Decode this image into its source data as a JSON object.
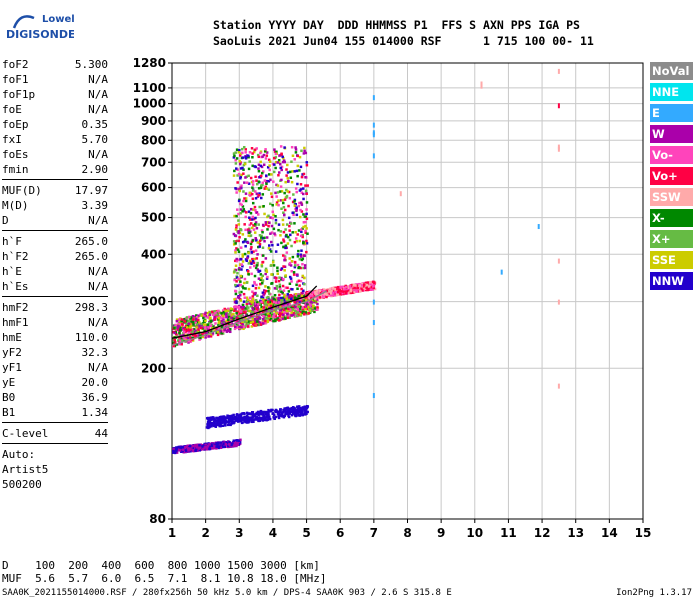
{
  "logo": {
    "line1": "Lowell",
    "line2": "DIGISONDE"
  },
  "header": {
    "labels": "Station YYYY DAY  DDD HHMMSS P1  FFS S AXN PPS IGA PS",
    "values": "SaoLuis 2021 Jun04 155 014000 RSF      1 715 100 00- 11"
  },
  "params": {
    "g1": [
      {
        "k": "foF2",
        "v": "5.300"
      },
      {
        "k": "foF1",
        "v": "N/A"
      },
      {
        "k": "foF1p",
        "v": "N/A"
      },
      {
        "k": "foE",
        "v": "N/A"
      },
      {
        "k": "foEp",
        "v": "0.35"
      },
      {
        "k": "fxI",
        "v": "5.70"
      },
      {
        "k": "foEs",
        "v": "N/A"
      },
      {
        "k": "fmin",
        "v": "2.90"
      }
    ],
    "g2": [
      {
        "k": "MUF(D)",
        "v": "17.97"
      },
      {
        "k": "M(D)",
        "v": "3.39"
      },
      {
        "k": "D",
        "v": "N/A"
      }
    ],
    "g3": [
      {
        "k": "h`F",
        "v": "265.0"
      },
      {
        "k": "h`F2",
        "v": "265.0"
      },
      {
        "k": "h`E",
        "v": "N/A"
      },
      {
        "k": "h`Es",
        "v": "N/A"
      }
    ],
    "g4": [
      {
        "k": "hmF2",
        "v": "298.3"
      },
      {
        "k": "hmF1",
        "v": "N/A"
      },
      {
        "k": "hmE",
        "v": "110.0"
      },
      {
        "k": "yF2",
        "v": "32.3"
      },
      {
        "k": "yF1",
        "v": "N/A"
      },
      {
        "k": "yE",
        "v": "20.0"
      },
      {
        "k": "B0",
        "v": "36.9"
      },
      {
        "k": "B1",
        "v": "1.34"
      }
    ],
    "clevel": {
      "k": "C-level",
      "v": "44"
    },
    "auto": [
      "Auto:",
      "Artist5",
      "500200"
    ]
  },
  "legend": [
    {
      "label": "NoVal",
      "color": "#8c8c8c"
    },
    {
      "label": "NNE",
      "color": "#00e5ee"
    },
    {
      "label": "E",
      "color": "#33aaff"
    },
    {
      "label": "W",
      "color": "#aa00aa"
    },
    {
      "label": "Vo-",
      "color": "#ff44bb"
    },
    {
      "label": "Vo+",
      "color": "#ff0044"
    },
    {
      "label": "SSW",
      "color": "#ffaaaa"
    },
    {
      "label": "X-",
      "color": "#008800"
    },
    {
      "label": "X+",
      "color": "#66bb44"
    },
    {
      "label": "SSE",
      "color": "#cccc00"
    },
    {
      "label": "NNW",
      "color": "#2200cc"
    }
  ],
  "bottom": {
    "d_row": "D    100  200  400  600  800 1000 1500 3000 [km]",
    "muf_row": "MUF  5.6  5.7  6.0  6.5  7.1  8.1 10.8 18.0 [MHz]"
  },
  "footer": {
    "left": "SAA0K_2021155014000.RSF / 280fx256h 50 kHz 5.0 km / DPS-4 SAA0K 903 / 2.6 S 315.8 E",
    "right": "Ion2Png 1.3.17"
  },
  "chart_data": {
    "type": "scatter",
    "title": "",
    "xlabel": "",
    "ylabel": "",
    "xlim": [
      1,
      15
    ],
    "ylim": [
      80,
      1280
    ],
    "y_scale": "log",
    "grid": true,
    "x_ticks": [
      1,
      2,
      3,
      4,
      5,
      6,
      7,
      8,
      9,
      10,
      11,
      12,
      13,
      14,
      15
    ],
    "y_ticks": [
      80,
      200,
      300,
      400,
      500,
      600,
      700,
      800,
      900,
      1000,
      1100,
      1280
    ],
    "regions": [
      {
        "name": "F-trace main",
        "freq": [
          1.0,
          5.3
        ],
        "height": [
          230,
          320
        ],
        "colors": [
          "#ff44bb",
          "#ff0044",
          "#008800",
          "#66bb44",
          "#cccc00",
          "#aa00aa"
        ]
      },
      {
        "name": "F-spread",
        "freq": [
          2.8,
          5.0
        ],
        "height": [
          300,
          780
        ],
        "colors": [
          "#ff44bb",
          "#008800",
          "#cccc00",
          "#66bb44",
          "#2200cc",
          "#aa00aa",
          "#ff0044"
        ]
      },
      {
        "name": "Extension",
        "freq": [
          5.0,
          7.0
        ],
        "height": [
          305,
          340
        ],
        "colors": [
          "#ff44bb",
          "#ff0044",
          "#ffaaaa"
        ]
      },
      {
        "name": "Es-layer",
        "freq": [
          2.0,
          5.0
        ],
        "height": [
          140,
          160
        ],
        "colors": [
          "#2200cc"
        ]
      },
      {
        "name": "Low echoes",
        "freq": [
          1.0,
          3.0
        ],
        "height": [
          120,
          130
        ],
        "colors": [
          "#2200cc",
          "#aa00aa"
        ]
      }
    ],
    "lines": [
      {
        "name": "trace-black",
        "points": [
          [
            1.0,
            240
          ],
          [
            2.0,
            250
          ],
          [
            3.0,
            270
          ],
          [
            4.0,
            290
          ],
          [
            5.0,
            310
          ],
          [
            5.3,
            330
          ]
        ],
        "color": "#000000"
      },
      {
        "name": "trace-gray",
        "points": [
          [
            1.0,
            230
          ],
          [
            2.0,
            245
          ],
          [
            3.0,
            265
          ],
          [
            4.0,
            285
          ],
          [
            5.0,
            300
          ],
          [
            5.6,
            320
          ]
        ],
        "color": "#888888"
      }
    ],
    "scattered": [
      {
        "x": 7.0,
        "y": 1040,
        "c": "#33aaff"
      },
      {
        "x": 7.0,
        "y": 880,
        "c": "#33aaff"
      },
      {
        "x": 7.0,
        "y": 840,
        "c": "#33aaff"
      },
      {
        "x": 7.0,
        "y": 830,
        "c": "#33aaff"
      },
      {
        "x": 7.0,
        "y": 730,
        "c": "#33aaff"
      },
      {
        "x": 7.0,
        "y": 300,
        "c": "#33aaff"
      },
      {
        "x": 7.0,
        "y": 265,
        "c": "#33aaff"
      },
      {
        "x": 7.0,
        "y": 170,
        "c": "#33aaff"
      },
      {
        "x": 7.8,
        "y": 580,
        "c": "#ffaaaa"
      },
      {
        "x": 10.2,
        "y": 1130,
        "c": "#ffaaaa"
      },
      {
        "x": 10.2,
        "y": 1115,
        "c": "#ffaaaa"
      },
      {
        "x": 11.9,
        "y": 475,
        "c": "#33aaff"
      },
      {
        "x": 10.8,
        "y": 360,
        "c": "#33aaff"
      },
      {
        "x": 12.5,
        "y": 1220,
        "c": "#ffaaaa"
      },
      {
        "x": 12.5,
        "y": 990,
        "c": "#ff0044"
      },
      {
        "x": 12.5,
        "y": 770,
        "c": "#ffaaaa"
      },
      {
        "x": 12.5,
        "y": 760,
        "c": "#ffaaaa"
      },
      {
        "x": 12.5,
        "y": 385,
        "c": "#ffaaaa"
      },
      {
        "x": 12.5,
        "y": 300,
        "c": "#ffaaaa"
      },
      {
        "x": 12.5,
        "y": 180,
        "c": "#ffaaaa"
      }
    ]
  }
}
